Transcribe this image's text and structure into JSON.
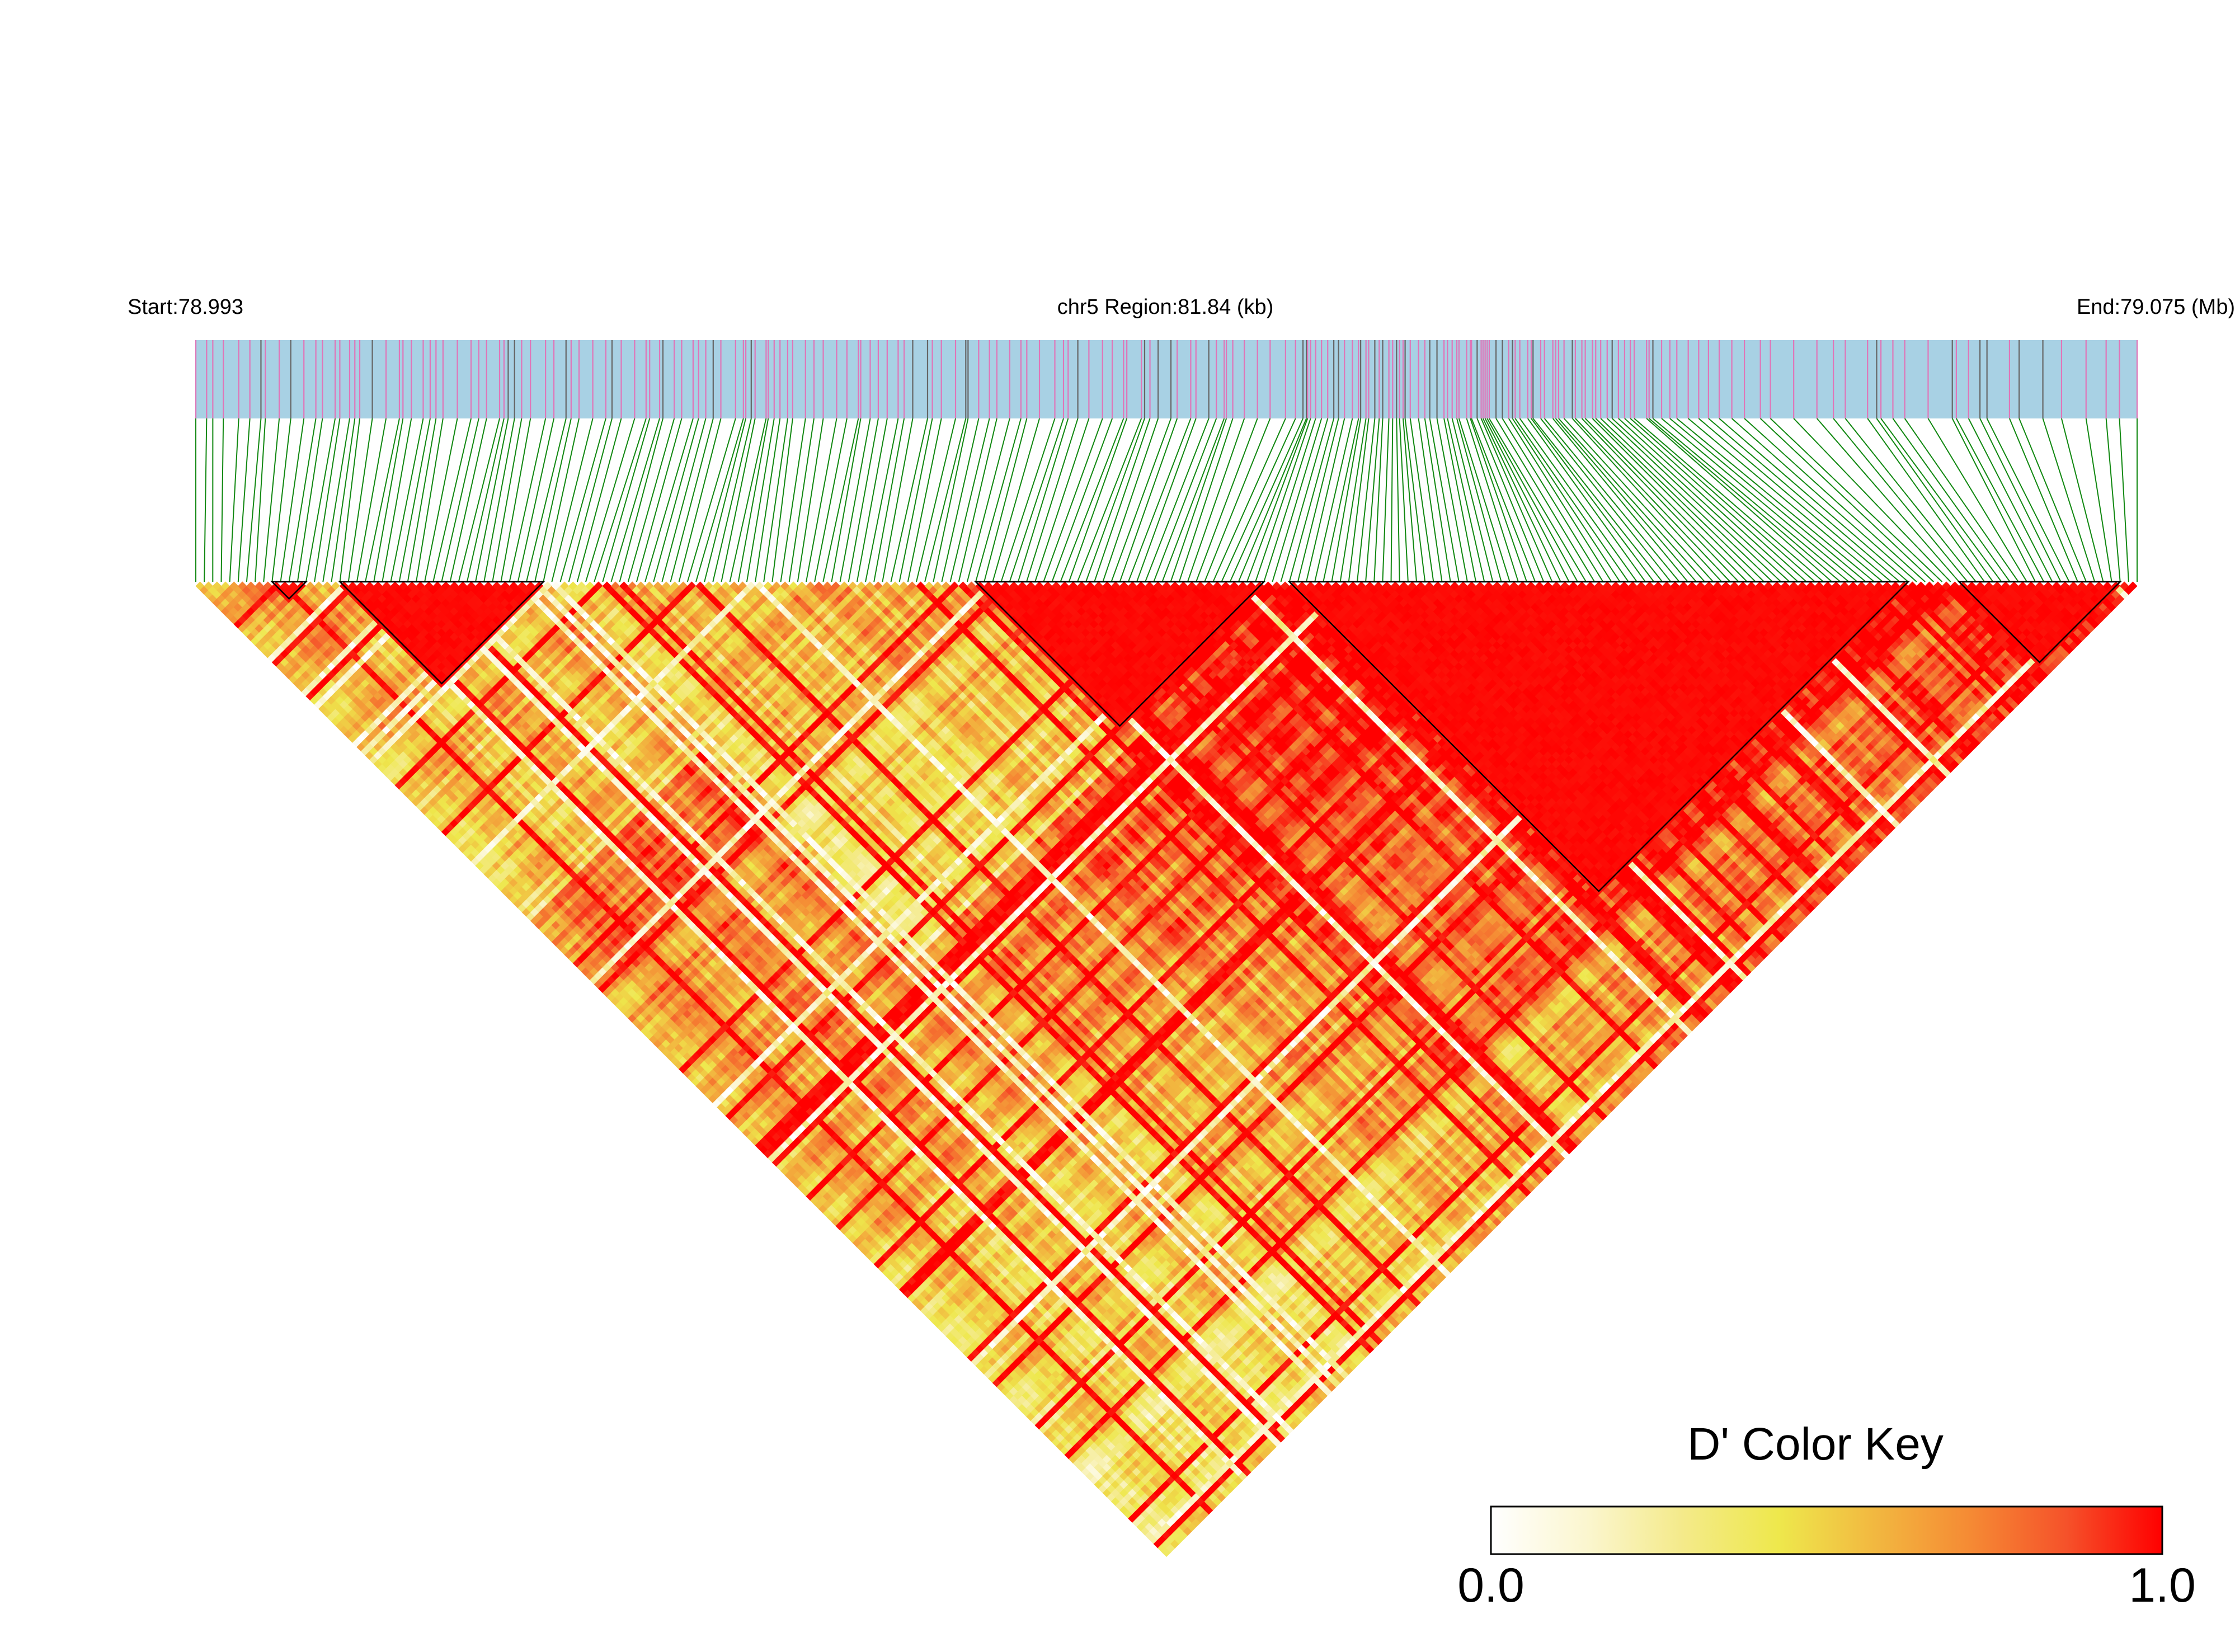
{
  "header": {
    "start_label": "Start:78.993",
    "region_label": "chr5 Region:81.84 (kb)",
    "end_label": "End:79.075 (Mb)"
  },
  "color_key": {
    "title": "D' Color Key",
    "min_label": "0.0",
    "max_label": "1.0",
    "stops": [
      "#ffffff",
      "#fbf6cf",
      "#f4ea8a",
      "#eee84c",
      "#f2b840",
      "#f58a34",
      "#f5522a",
      "#ff0000"
    ]
  },
  "colors": {
    "snp_bar_bg": "#a8d1e4",
    "snp_tick_pink": "#e075b8",
    "snp_tick_gray": "#666666",
    "connector": "#118811",
    "block_outline": "#000000"
  },
  "ld_map": {
    "chromosome": "chr5",
    "start_mb": 78.993,
    "end_mb": 79.075,
    "n_snps": 230,
    "blocks": [
      {
        "from": 9,
        "to": 13
      },
      {
        "from": 17,
        "to": 41
      },
      {
        "from": 92,
        "to": 126
      },
      {
        "from": 129,
        "to": 202
      },
      {
        "from": 208,
        "to": 227
      }
    ]
  }
}
